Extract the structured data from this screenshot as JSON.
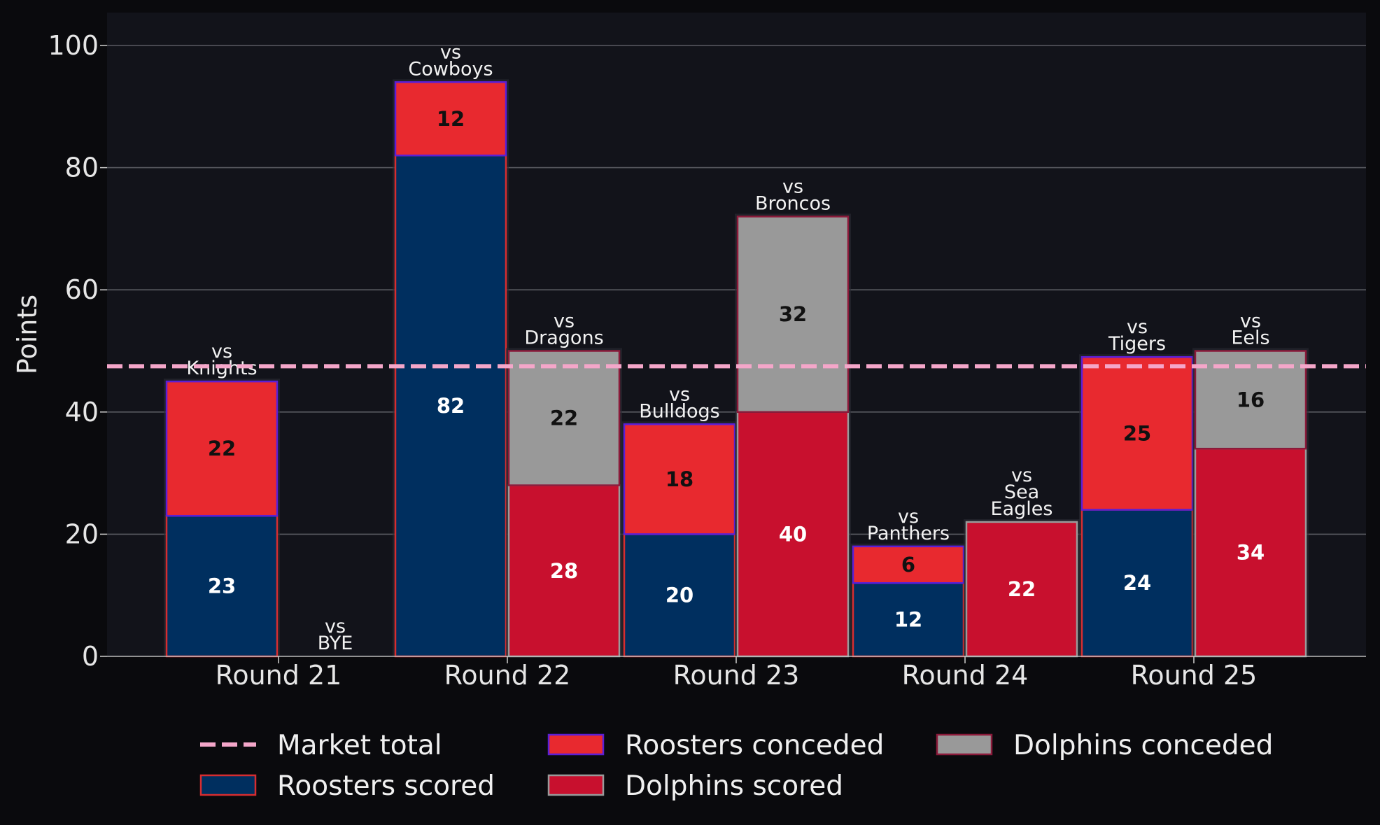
{
  "chart_data": {
    "type": "bar",
    "title": "",
    "xlabel": "",
    "ylabel": "Points",
    "ylim": [
      0,
      105
    ],
    "yticks": [
      0,
      20,
      40,
      60,
      80,
      100
    ],
    "grid": true,
    "legend_position": "bottom",
    "categories": [
      "Round 21",
      "Round 22",
      "Round 23",
      "Round 24",
      "Round 25"
    ],
    "market_total": 47.5,
    "series": [
      {
        "name": "Roosters scored",
        "color": "#002f5f",
        "edge": "#d62d30",
        "values": [
          23,
          82,
          20,
          12,
          24
        ]
      },
      {
        "name": "Roosters conceded",
        "color": "#e8292f",
        "edge": "#5b1fd6",
        "values": [
          22,
          12,
          18,
          6,
          25
        ]
      },
      {
        "name": "Dolphins scored",
        "color": "#c8102e",
        "edge": "#9a9a9a",
        "values": [
          0,
          28,
          40,
          22,
          34
        ]
      },
      {
        "name": "Dolphins conceded",
        "color": "#999999",
        "edge": "#8b1a3a",
        "values": [
          0,
          22,
          32,
          0,
          16
        ]
      }
    ],
    "legend": {
      "market_total": "Market total",
      "roosters_scored": "Roosters scored",
      "roosters_conceded": "Roosters conceded",
      "dolphins_scored": "Dolphins scored",
      "dolphins_conceded": "Dolphins conceded"
    },
    "market_color": "#f4a6c9",
    "roosters_opponents": [
      [
        "vs",
        "Knights"
      ],
      [
        "vs",
        "Cowboys"
      ],
      [
        "vs",
        "Bulldogs"
      ],
      [
        "vs",
        "Panthers"
      ],
      [
        "vs",
        "Tigers"
      ]
    ],
    "dolphins_opponents": [
      [
        "vs",
        "BYE"
      ],
      [
        "vs",
        "Dragons"
      ],
      [
        "vs",
        "Broncos"
      ],
      [
        "vs",
        "Sea",
        "Eagles"
      ],
      [
        "vs",
        "Eels"
      ]
    ]
  }
}
